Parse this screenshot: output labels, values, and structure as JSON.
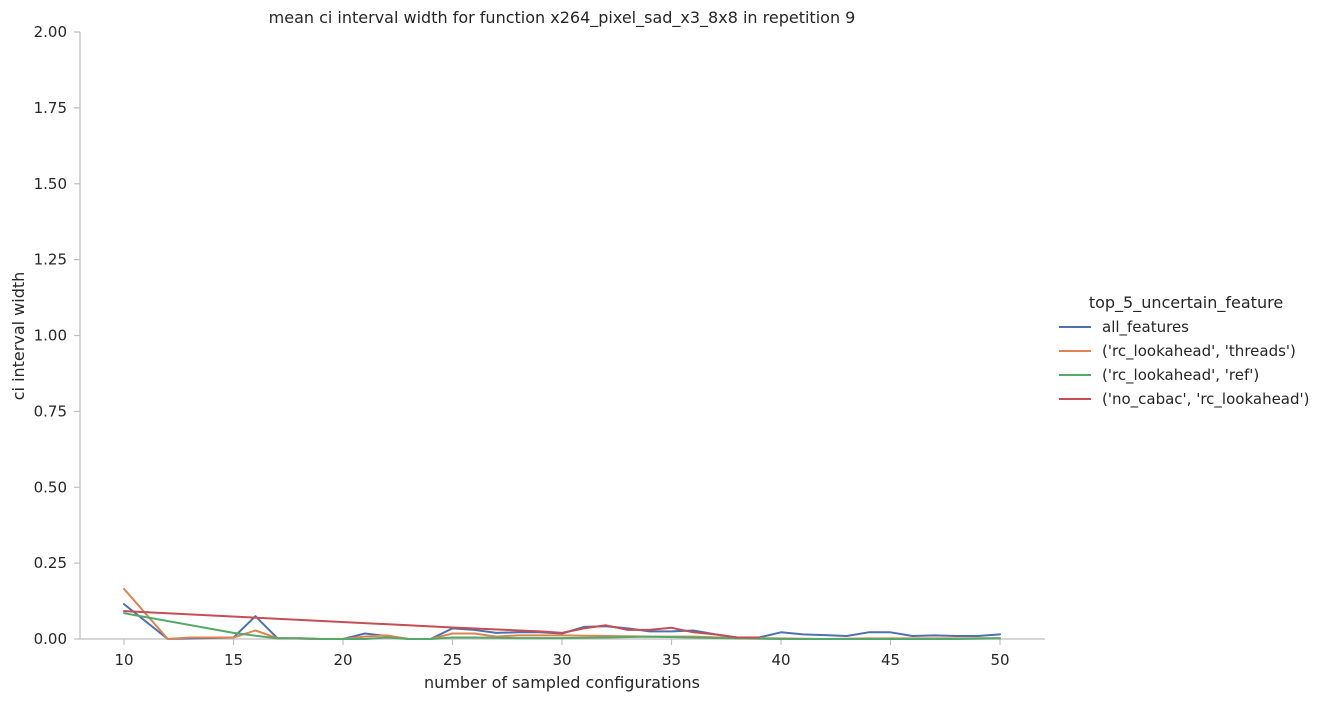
{
  "chart_data": {
    "type": "line",
    "title": "mean ci interval width for function x264_pixel_sad_x3_8x8 in repetition 9",
    "xlabel": "number of sampled configurations",
    "ylabel": "ci interval width",
    "xlim": [
      8,
      52
    ],
    "ylim": [
      0,
      2.0
    ],
    "xticks": [
      "10",
      "15",
      "20",
      "25",
      "30",
      "35",
      "40",
      "45",
      "50"
    ],
    "yticks": [
      "0.00",
      "0.25",
      "0.50",
      "0.75",
      "1.00",
      "1.25",
      "1.50",
      "1.75",
      "2.00"
    ],
    "grid": false,
    "legend": {
      "title": "top_5_uncertain_feature",
      "placement": "right"
    },
    "series": [
      {
        "name": "all_features",
        "color": "#4c72b0",
        "x": [
          10,
          12,
          15,
          16,
          17,
          19,
          20,
          21,
          22,
          23,
          24,
          25,
          26,
          27,
          28,
          29,
          30,
          31,
          32,
          33,
          34,
          35,
          36,
          37,
          38,
          39,
          40,
          41,
          42,
          43,
          44,
          45,
          46,
          47,
          48,
          49,
          50
        ],
        "y": [
          0.115,
          0.0,
          0.005,
          0.075,
          0.003,
          0.0,
          0.0,
          0.018,
          0.01,
          0.0,
          0.0,
          0.035,
          0.03,
          0.02,
          0.022,
          0.022,
          0.018,
          0.04,
          0.042,
          0.035,
          0.025,
          0.025,
          0.028,
          0.015,
          0.005,
          0.005,
          0.022,
          0.015,
          0.013,
          0.01,
          0.022,
          0.022,
          0.01,
          0.012,
          0.01,
          0.01,
          0.015
        ]
      },
      {
        "name": "('rc_lookahead', 'threads')",
        "color": "#dd8452",
        "x": [
          10,
          12,
          13,
          15,
          16,
          17,
          19,
          20,
          21,
          22,
          23,
          24,
          25,
          26,
          27,
          28,
          30,
          32,
          34,
          36,
          38,
          40,
          42,
          44,
          46,
          48,
          50
        ],
        "y": [
          0.165,
          0.0,
          0.005,
          0.005,
          0.028,
          0.003,
          0.0,
          0.0,
          0.008,
          0.012,
          0.0,
          0.0,
          0.018,
          0.018,
          0.008,
          0.012,
          0.012,
          0.01,
          0.008,
          0.008,
          0.003,
          0.002,
          0.0,
          0.002,
          0.002,
          0.002,
          0.003
        ]
      },
      {
        "name": "('rc_lookahead', 'ref')",
        "color": "#55a868",
        "x": [
          10,
          15,
          17,
          18,
          19,
          20,
          21,
          22,
          23,
          24,
          25,
          26,
          28,
          30,
          32,
          34,
          36,
          38,
          40,
          42,
          44,
          46,
          48,
          50
        ],
        "y": [
          0.085,
          0.02,
          0.002,
          0.003,
          0.0,
          0.0,
          0.0,
          0.005,
          0.0,
          0.0,
          0.005,
          0.005,
          0.003,
          0.003,
          0.005,
          0.008,
          0.005,
          0.002,
          0.0,
          0.0,
          0.0,
          0.0,
          0.0,
          0.002
        ]
      },
      {
        "name": "('no_cabac', 'rc_lookahead')",
        "color": "#c44e52",
        "x": [
          10,
          25,
          29,
          30,
          31,
          32,
          33,
          34,
          35,
          36,
          37,
          38,
          39
        ],
        "y": [
          0.092,
          0.038,
          0.025,
          0.02,
          0.035,
          0.045,
          0.03,
          0.03,
          0.037,
          0.022,
          0.015,
          0.005,
          0.005
        ]
      }
    ]
  }
}
